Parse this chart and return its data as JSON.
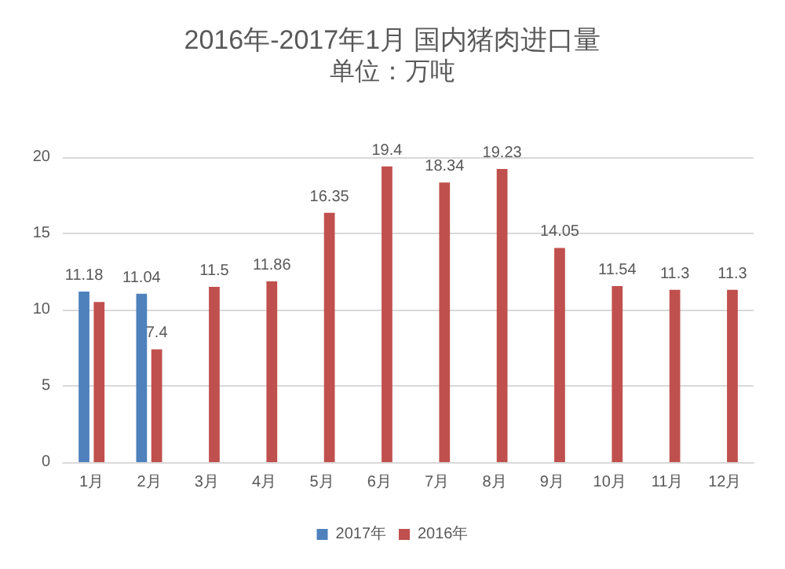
{
  "chart_data": {
    "type": "bar",
    "title": "2016年-2017年1月 国内猪肉进口量",
    "subtitle": "单位：万吨",
    "categories": [
      "1月",
      "2月",
      "3月",
      "4月",
      "5月",
      "6月",
      "7月",
      "8月",
      "9月",
      "10月",
      "11月",
      "12月"
    ],
    "series": [
      {
        "name": "2017年",
        "color": "#4f81bd",
        "values": [
          11.18,
          11.04,
          null,
          null,
          null,
          null,
          null,
          null,
          null,
          null,
          null,
          null
        ],
        "value_labels": [
          "11.18",
          "11.04",
          null,
          null,
          null,
          null,
          null,
          null,
          null,
          null,
          null,
          null
        ]
      },
      {
        "name": "2016年",
        "color": "#c0504d",
        "values": [
          10.5,
          7.4,
          11.5,
          11.86,
          16.35,
          19.4,
          18.34,
          19.23,
          14.05,
          11.54,
          11.3,
          11.3
        ],
        "value_labels": [
          null,
          "7.4",
          "11.5",
          "11.86",
          "16.35",
          "19.4",
          "18.34",
          "19.23",
          "14.05",
          "11.54",
          "11.3",
          "11.3"
        ]
      }
    ],
    "ylim": [
      0,
      20
    ],
    "yticks": [
      0,
      5,
      10,
      15,
      20
    ],
    "grid": "y",
    "legend": "bottom"
  }
}
